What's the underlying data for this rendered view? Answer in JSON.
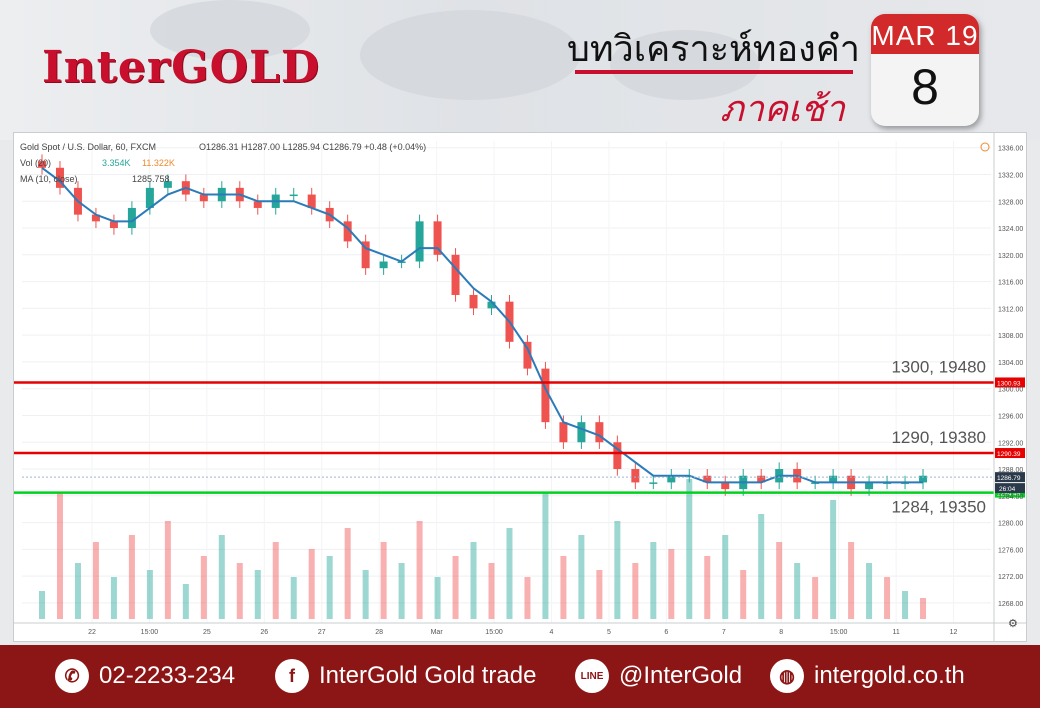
{
  "header": {
    "logo": "InterGOLD",
    "title_line1": "บทวิเคราะห์ทองคำ",
    "title_line2": "ภาคเช้า",
    "calendar_month": "MAR 19",
    "calendar_day": "8"
  },
  "legend": {
    "symbol": "Gold Spot / U.S. Dollar, 60, FXCM",
    "ohlc": "O1286.31 H1287.00 L1285.94 C1286.79 +0.48 (+0.04%)",
    "vol_label": "Vol (20)",
    "vol_value1": "3.354K",
    "vol_value2": "11.322K",
    "ma_label": "MA (10, close)",
    "ma_value": "1285.758"
  },
  "chart_data": {
    "type": "candlestick",
    "x_tick_labels": [
      "22",
      "15:00",
      "25",
      "26",
      "27",
      "28",
      "Mar",
      "15:00",
      "4",
      "5",
      "6",
      "7",
      "8",
      "15:00",
      "11",
      "12"
    ],
    "y_tick_labels": [
      "1336.00",
      "1332.00",
      "1328.00",
      "1324.00",
      "1320.00",
      "1316.00",
      "1312.00",
      "1308.00",
      "1304.00",
      "1300.00",
      "1296.00",
      "1292.00",
      "1288.00",
      "1284.00",
      "1280.00",
      "1276.00",
      "1272.00",
      "1268.00"
    ],
    "ylim": [
      1265,
      1337
    ],
    "price_path": [
      1333,
      1330,
      1326,
      1325,
      1324,
      1327,
      1330,
      1331,
      1329,
      1328,
      1330,
      1328,
      1327,
      1329,
      1329,
      1327,
      1325,
      1322,
      1318,
      1319,
      1319,
      1325,
      1320,
      1314,
      1312,
      1313,
      1307,
      1303,
      1295,
      1292,
      1295,
      1292,
      1288,
      1286,
      1286,
      1287,
      1287,
      1286,
      1285,
      1287,
      1286,
      1288,
      1286,
      1286,
      1287,
      1285,
      1286,
      1286,
      1286,
      1287
    ],
    "ma_path": [
      1333,
      1331,
      1328,
      1326,
      1325,
      1325,
      1327,
      1329,
      1330,
      1329,
      1329,
      1329,
      1328,
      1328,
      1328,
      1327,
      1326,
      1324,
      1321,
      1320,
      1319,
      1321,
      1321,
      1318,
      1315,
      1313,
      1310,
      1306,
      1300,
      1295,
      1294,
      1293,
      1291,
      1289,
      1287,
      1287,
      1287,
      1286,
      1286,
      1286,
      1286,
      1287,
      1287,
      1286,
      1286,
      1286,
      1286,
      1286,
      1286,
      1286
    ],
    "volume_scale_max": 100,
    "volumes": [
      20,
      90,
      40,
      55,
      30,
      60,
      35,
      70,
      25,
      45,
      60,
      40,
      35,
      55,
      30,
      50,
      45,
      65,
      35,
      55,
      40,
      70,
      30,
      45,
      55,
      40,
      65,
      30,
      90,
      45,
      60,
      35,
      70,
      40,
      55,
      50,
      100,
      45,
      60,
      35,
      75,
      55,
      40,
      30,
      85,
      55,
      40,
      30,
      20,
      15
    ],
    "lines": [
      {
        "level": 1300.93,
        "price_tag": "1300.93",
        "label": "1300, 19480",
        "color": "#e60000"
      },
      {
        "level": 1290.39,
        "price_tag": "1290.39",
        "label": "1290, 19380",
        "color": "#e60000"
      },
      {
        "level": 1284.48,
        "price_tag": "1284.48",
        "label": "1284, 19350",
        "color": "#00d21e"
      }
    ],
    "current_price_tag": "1286.79",
    "countdown_tag": "26:04"
  },
  "footer": {
    "phone": "02-2233-234",
    "facebook": "InterGold Gold trade",
    "line": "@InterGold",
    "web": "intergold.co.th",
    "phone_icon": "phone-icon",
    "facebook_icon": "facebook-icon",
    "line_icon": "line-icon",
    "web_icon": "globe-icon"
  },
  "colors": {
    "brand_red": "#c8102e",
    "footer_bg": "#8c1616",
    "up": "#26a69a",
    "down": "#ef5350",
    "ma": "#2b7bb9"
  }
}
